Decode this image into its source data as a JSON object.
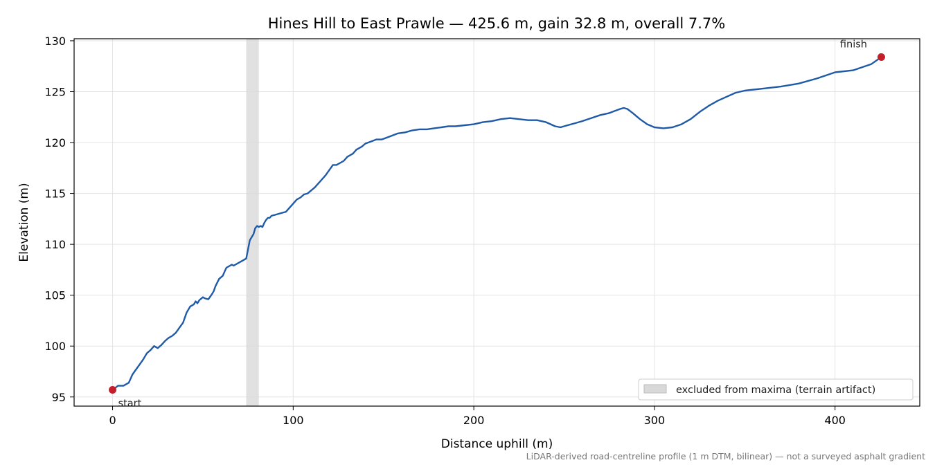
{
  "chart_data": {
    "type": "line",
    "title": "Hines Hill to East Prawle — 425.6 m, gain 32.8 m, overall 7.7%",
    "xlabel": "Distance uphill (m)",
    "ylabel": "Elevation (m)",
    "xlim": [
      -21.3,
      446.9
    ],
    "ylim": [
      94.1,
      130.2
    ],
    "xticks": [
      0,
      100,
      200,
      300,
      400
    ],
    "yticks": [
      95,
      100,
      105,
      110,
      115,
      120,
      125,
      130
    ],
    "grid": true,
    "line_color": "#1f5aa8",
    "marker_color": "#c41e2a",
    "series": [
      {
        "x": [
          0,
          3,
          6,
          9,
          11,
          13,
          15,
          17,
          19,
          21,
          23,
          25,
          27,
          29,
          31,
          33,
          35,
          37,
          39,
          41,
          43,
          45,
          46,
          47,
          48,
          50,
          51,
          53,
          55,
          56,
          57,
          59,
          61,
          62,
          63,
          64,
          66,
          67,
          68,
          70,
          72,
          74,
          75,
          76,
          77,
          78,
          79,
          80,
          81,
          82,
          83,
          84,
          85,
          86,
          87,
          88,
          90,
          92,
          94,
          96,
          98,
          100,
          102,
          104,
          106,
          108,
          110,
          112,
          114,
          116,
          118,
          120,
          122,
          124,
          126,
          128,
          130,
          133,
          135,
          138,
          140,
          143,
          146,
          149,
          152,
          155,
          158,
          162,
          166,
          170,
          174,
          178,
          182,
          186,
          190,
          195,
          200,
          205,
          210,
          215,
          220,
          225,
          230,
          235,
          240,
          245,
          248,
          252,
          256,
          260,
          265,
          270,
          275,
          278,
          281,
          283,
          285,
          288,
          292,
          296,
          300,
          305,
          310,
          315,
          320,
          325,
          330,
          335,
          340,
          345,
          350,
          355,
          360,
          370,
          380,
          390,
          400,
          410,
          420,
          425.6
        ],
        "y": [
          95.7,
          96.1,
          96.1,
          96.4,
          97.2,
          97.7,
          98.2,
          98.7,
          99.3,
          99.6,
          100.0,
          99.8,
          100.1,
          100.5,
          100.8,
          101.0,
          101.3,
          101.8,
          102.3,
          103.3,
          103.9,
          104.1,
          104.4,
          104.2,
          104.5,
          104.8,
          104.7,
          104.6,
          105.1,
          105.4,
          105.9,
          106.6,
          106.9,
          107.3,
          107.7,
          107.8,
          108.0,
          107.9,
          108.0,
          108.2,
          108.4,
          108.6,
          109.5,
          110.4,
          110.7,
          111.0,
          111.6,
          111.8,
          111.7,
          111.8,
          111.7,
          112.1,
          112.4,
          112.6,
          112.6,
          112.8,
          112.9,
          113.0,
          113.1,
          113.2,
          113.6,
          114.0,
          114.4,
          114.6,
          114.9,
          115.0,
          115.3,
          115.6,
          116.0,
          116.4,
          116.8,
          117.3,
          117.8,
          117.8,
          118.0,
          118.2,
          118.6,
          118.9,
          119.3,
          119.6,
          119.9,
          120.1,
          120.3,
          120.3,
          120.5,
          120.7,
          120.9,
          121.0,
          121.2,
          121.3,
          121.3,
          121.4,
          121.5,
          121.6,
          121.6,
          121.7,
          121.8,
          122.0,
          122.1,
          122.3,
          122.4,
          122.3,
          122.2,
          122.2,
          122.0,
          121.6,
          121.5,
          121.7,
          121.9,
          122.1,
          122.4,
          122.7,
          122.9,
          123.1,
          123.3,
          123.4,
          123.3,
          122.9,
          122.3,
          121.8,
          121.5,
          121.4,
          121.5,
          121.8,
          122.3,
          123.0,
          123.6,
          124.1,
          124.5,
          124.9,
          125.1,
          125.2,
          125.3,
          125.5,
          125.8,
          126.3,
          126.9,
          127.1,
          127.7,
          128.4
        ]
      }
    ],
    "excluded_band": {
      "x": [
        74,
        81
      ],
      "color": "#d9d9d9"
    },
    "annotations": [
      {
        "text": "start",
        "x": 0,
        "y": 95.7
      },
      {
        "text": "finish",
        "x": 425.6,
        "y": 128.4
      }
    ],
    "legend": {
      "position": "bottom-right",
      "entries": [
        "excluded from maxima (terrain artifact)"
      ]
    },
    "footnote": "LiDAR-derived road-centreline profile (1 m DTM, bilinear) — not a surveyed asphalt gradient"
  }
}
